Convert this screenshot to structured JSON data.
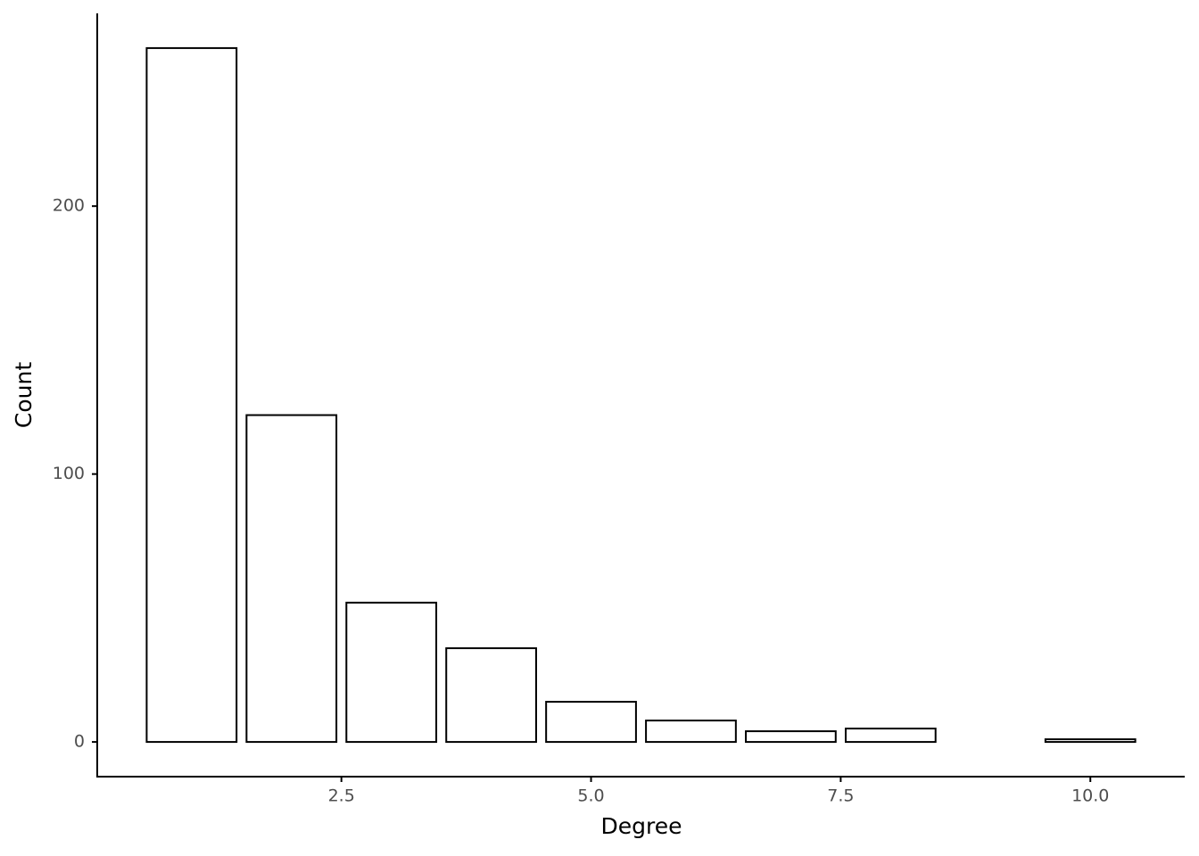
{
  "chart_data": {
    "type": "bar",
    "x": [
      1,
      2,
      3,
      4,
      5,
      6,
      7,
      8,
      10
    ],
    "values": [
      259,
      122,
      52,
      35,
      15,
      8,
      4,
      5,
      1
    ],
    "color": "#ffffff",
    "edge_color": "#000000",
    "xlabel": "Degree",
    "ylabel": "Count",
    "xlim": [
      0.055,
      10.945
    ],
    "xticks": [
      2.5,
      {
        "value": 5,
        "label": "5.0"
      },
      7.5,
      {
        "value": 10,
        "label": "10.0"
      }
    ],
    "ylim": [
      -12.95,
      271.95
    ],
    "yticks": [
      0,
      100,
      200
    ],
    "grid": false
  }
}
